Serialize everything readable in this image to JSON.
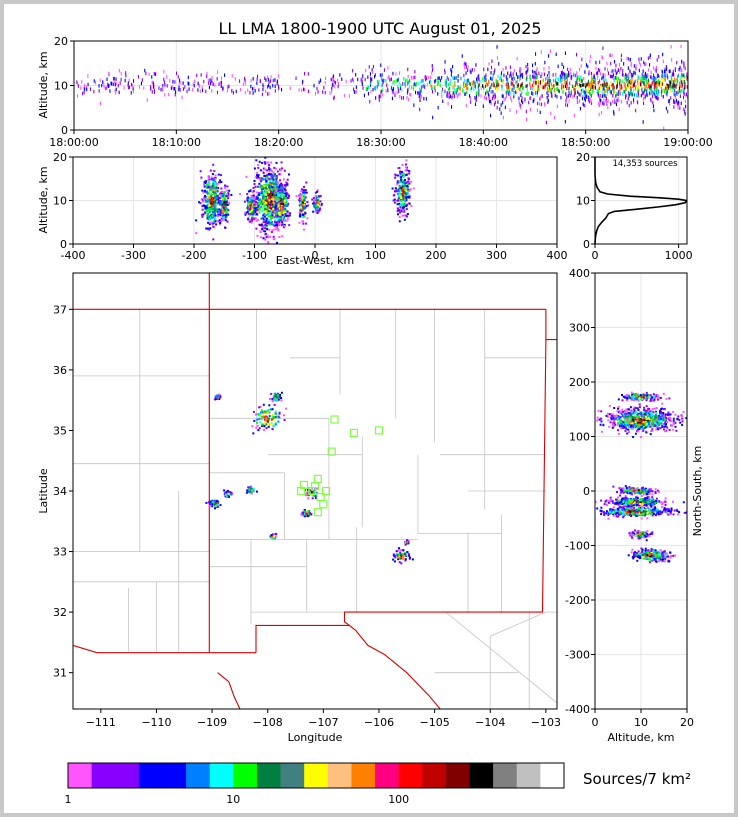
{
  "chart_data": {
    "title": "LL LMA 1800-1900 UTC August 01, 2025",
    "colors": {
      "stateBorder": "#dd0000",
      "countyBorder": "#c4c4c4",
      "grid": "#e6e6e6",
      "stationMarker": "#80ff40"
    },
    "panels": {
      "time_height": {
        "type": "scatter",
        "ylabel": "Altitude, km",
        "xlim_minutes": [
          0,
          60
        ],
        "ylim": [
          0,
          20
        ],
        "yticks": [
          0,
          10,
          20
        ],
        "xticks": [
          {
            "value": 0,
            "label": "18:00:00"
          },
          {
            "value": 10,
            "label": "18:10:00"
          },
          {
            "value": 20,
            "label": "18:20:00"
          },
          {
            "value": 30,
            "label": "18:30:00"
          },
          {
            "value": 40,
            "label": "18:40:00"
          },
          {
            "value": 50,
            "label": "18:50:00"
          },
          {
            "value": 60,
            "label": "19:00:00"
          }
        ]
      },
      "ew_height": {
        "type": "scatter",
        "xlabel": "East-West, km",
        "ylabel": "Altitude, km",
        "xlim": [
          -400,
          400
        ],
        "ylim": [
          0,
          20
        ],
        "xticks": [
          -400,
          -300,
          -200,
          -100,
          0,
          100,
          200,
          300,
          400
        ],
        "yticks": [
          0,
          10,
          20
        ],
        "clusters": [
          {
            "x": -170,
            "z": 10,
            "sx": 8,
            "sz": 3
          },
          {
            "x": -150,
            "z": 9,
            "sx": 4,
            "sz": 2
          },
          {
            "x": -105,
            "z": 8.5,
            "sx": 5,
            "sz": 1.5
          },
          {
            "x": -75,
            "z": 10,
            "sx": 12,
            "sz": 4
          },
          {
            "x": -55,
            "z": 9,
            "sx": 6,
            "sz": 2.5
          },
          {
            "x": -20,
            "z": 9,
            "sx": 3,
            "sz": 2
          },
          {
            "x": 3,
            "z": 9.5,
            "sx": 3,
            "sz": 1
          },
          {
            "x": 145,
            "z": 12,
            "sx": 6,
            "sz": 2.5
          }
        ]
      },
      "histogram": {
        "type": "line",
        "annotation": "14,353 sources",
        "xlim": [
          0,
          1100
        ],
        "ylim": [
          0,
          20
        ],
        "xticks": [
          0,
          1000
        ],
        "yticks": [
          0,
          10,
          20
        ],
        "profile": [
          [
            0,
            0
          ],
          [
            2,
            1
          ],
          [
            8,
            2
          ],
          [
            20,
            3
          ],
          [
            40,
            4
          ],
          [
            80,
            5
          ],
          [
            130,
            6
          ],
          [
            160,
            7
          ],
          [
            230,
            7.5
          ],
          [
            500,
            8
          ],
          [
            750,
            8.5
          ],
          [
            960,
            9
          ],
          [
            1080,
            9.5
          ],
          [
            1090,
            10
          ],
          [
            1000,
            10.3
          ],
          [
            800,
            10.6
          ],
          [
            420,
            11
          ],
          [
            150,
            11.5
          ],
          [
            60,
            12
          ],
          [
            25,
            13
          ],
          [
            10,
            14
          ],
          [
            3,
            15
          ],
          [
            0,
            16
          ],
          [
            0,
            20
          ]
        ]
      },
      "plan_view": {
        "type": "scatter",
        "xlabel": "Longitude",
        "ylabel": "Latitude",
        "xlim": [
          -111.5,
          -102.8
        ],
        "ylim": [
          30.4,
          37.6
        ],
        "xticks": [
          -111,
          -110,
          -109,
          -108,
          -107,
          -106,
          -105,
          -104,
          -103
        ],
        "yticks": [
          31,
          32,
          33,
          34,
          35,
          36,
          37
        ],
        "clusters": [
          {
            "lon": -108.0,
            "lat": 35.2,
            "s": 0.15
          },
          {
            "lon": -107.85,
            "lat": 35.55,
            "s": 0.05
          },
          {
            "lon": -108.9,
            "lat": 35.55,
            "s": 0.03
          },
          {
            "lon": -108.95,
            "lat": 33.8,
            "s": 0.05
          },
          {
            "lon": -108.7,
            "lat": 33.95,
            "s": 0.04
          },
          {
            "lon": -108.3,
            "lat": 34.02,
            "s": 0.04
          },
          {
            "lon": -107.2,
            "lat": 33.97,
            "s": 0.06
          },
          {
            "lon": -107.3,
            "lat": 33.63,
            "s": 0.04
          },
          {
            "lon": -107.9,
            "lat": 33.25,
            "s": 0.03
          },
          {
            "lon": -105.6,
            "lat": 32.92,
            "s": 0.07
          },
          {
            "lon": -105.5,
            "lat": 33.15,
            "s": 0.02
          }
        ],
        "stations": [
          [
            -106.8,
            35.18
          ],
          [
            -106.45,
            34.96
          ],
          [
            -106.0,
            35.0
          ],
          [
            -106.85,
            34.65
          ],
          [
            -107.1,
            34.2
          ],
          [
            -107.15,
            34.08
          ],
          [
            -107.35,
            34.1
          ],
          [
            -107.4,
            34.0
          ],
          [
            -107.2,
            34.0
          ],
          [
            -106.95,
            34.0
          ],
          [
            -107.05,
            33.9
          ],
          [
            -107.0,
            33.78
          ],
          [
            -107.1,
            33.65
          ]
        ]
      },
      "ns_height": {
        "type": "scatter",
        "xlabel": "Altitude, km",
        "ylabel": "North-South, km",
        "xlim": [
          0,
          20
        ],
        "ylim": [
          -400,
          400
        ],
        "xticks": [
          0,
          10,
          20
        ],
        "yticks": [
          -400,
          -300,
          -200,
          -100,
          0,
          100,
          200,
          300,
          400
        ],
        "clusters": [
          {
            "y": 130,
            "z": 10,
            "sy": 10,
            "sz": 3.5
          },
          {
            "y": 172,
            "z": 10,
            "sy": 3,
            "sz": 2
          },
          {
            "y": 0,
            "z": 9,
            "sy": 3,
            "sz": 2
          },
          {
            "y": -20,
            "z": 9,
            "sy": 4,
            "sz": 3
          },
          {
            "y": -38,
            "z": 9,
            "sy": 4,
            "sz": 4
          },
          {
            "y": -80,
            "z": 10,
            "sy": 3,
            "sz": 1
          },
          {
            "y": -118,
            "z": 12,
            "sy": 5,
            "sz": 2
          }
        ]
      }
    },
    "colorbar": {
      "label": "Sources/7 km²",
      "scale": "log",
      "tick_labels": [
        "1",
        "10",
        "100"
      ],
      "colors": [
        "#ff55ff",
        "#8800ff",
        "#8800ff",
        "#0000ff",
        "#0000ff",
        "#0080ff",
        "#00ffff",
        "#00ff00",
        "#008040",
        "#408080",
        "#ffff00",
        "#ffc080",
        "#ff8000",
        "#ff0080",
        "#ff0000",
        "#c00000",
        "#800000",
        "#000000",
        "#808080",
        "#c0c0c0",
        "#ffffff"
      ]
    }
  }
}
